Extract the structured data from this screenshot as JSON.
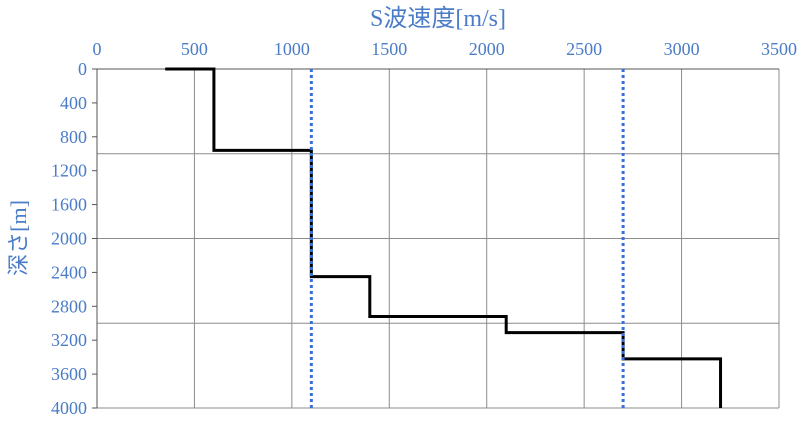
{
  "chart_data": {
    "type": "line",
    "title": "S波速度[m/s]",
    "xlabel": "S波速度[m/s]",
    "ylabel": "深さ[m]",
    "xlim": [
      0,
      3500
    ],
    "ylim": [
      0,
      4000
    ],
    "y_inverted": true,
    "x_axis_position": "top",
    "x_ticks": [
      "0",
      "500",
      "1000",
      "1500",
      "2000",
      "2500",
      "3000",
      "3500"
    ],
    "y_ticks": [
      "0",
      "400",
      "800",
      "1200",
      "1600",
      "2000",
      "2400",
      "2800",
      "3200",
      "3600",
      "4000"
    ],
    "grid": {
      "vertical": true,
      "horizontal_major_every": 1000
    },
    "series": [
      {
        "style": "solid",
        "color": "#000000",
        "points": [
          [
            350,
            0
          ],
          [
            600,
            0
          ],
          [
            600,
            960
          ],
          [
            1100,
            960
          ],
          [
            1100,
            2450
          ],
          [
            1400,
            2450
          ],
          [
            1400,
            2920
          ],
          [
            2100,
            2920
          ],
          [
            2100,
            3110
          ],
          [
            2700,
            3110
          ],
          [
            2700,
            3420
          ],
          [
            3200,
            3420
          ],
          [
            3200,
            4000
          ]
        ]
      },
      {
        "style": "dotted",
        "color": "#3a6fd8",
        "points": [
          [
            1100,
            0
          ],
          [
            1100,
            4000
          ]
        ]
      },
      {
        "style": "dotted",
        "color": "#3a6fd8",
        "points": [
          [
            2700,
            0
          ],
          [
            2700,
            4000
          ]
        ]
      }
    ],
    "colors": {
      "text": "#4a7cc7",
      "grid": "#8c8c8c",
      "axis": "#555555"
    }
  }
}
